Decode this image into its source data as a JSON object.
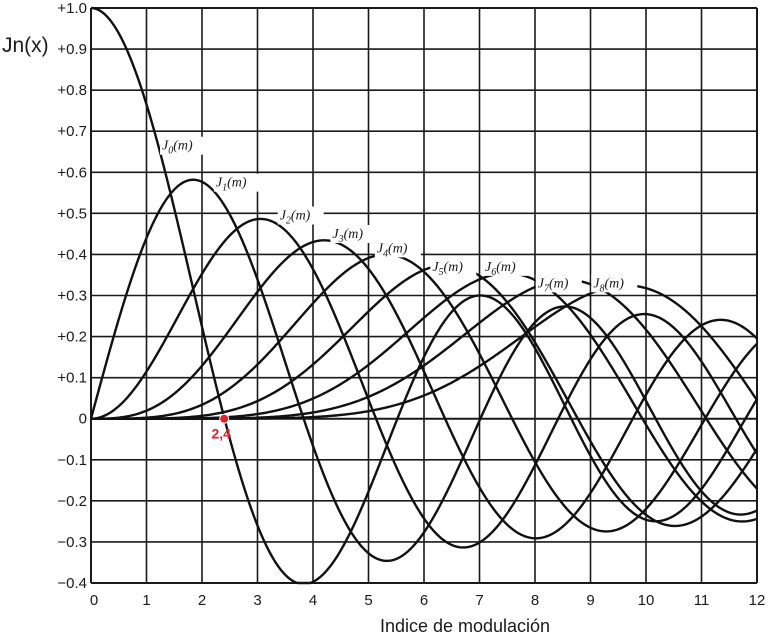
{
  "chart_data": {
    "type": "line",
    "title": "",
    "ylabel": "Jn(x)",
    "xlabel": "Indice de modulación",
    "xlim": [
      0,
      12
    ],
    "ylim": [
      -0.4,
      1.0
    ],
    "grid": true,
    "legend_position": "inline labels on curves",
    "x_ticks": [
      "0",
      "1",
      "2",
      "3",
      "4",
      "5",
      "6",
      "7",
      "8",
      "9",
      "10",
      "11",
      "12"
    ],
    "y_ticks": [
      "+1.0",
      "+0.9",
      "+0.8",
      "+0.7",
      "+0.6",
      "+0.5",
      "+0.4",
      "+0.3",
      "+0.2",
      "+0.1",
      "0",
      "−0.1",
      "−0.2",
      "−0.3",
      "−0.4"
    ],
    "x": [
      0,
      1,
      2,
      3,
      4,
      5,
      6,
      7,
      8,
      9,
      10,
      11,
      12
    ],
    "series": [
      {
        "name": "J0(m)",
        "order": 0,
        "values": [
          1.0,
          0.77,
          0.22,
          -0.26,
          -0.4,
          -0.18,
          0.15,
          0.3,
          0.17,
          -0.09,
          -0.25,
          -0.17,
          0.05
        ]
      },
      {
        "name": "J1(m)",
        "order": 1,
        "values": [
          0.0,
          0.44,
          0.58,
          0.34,
          -0.07,
          -0.33,
          -0.28,
          0.0,
          0.23,
          0.25,
          0.04,
          -0.18,
          -0.22
        ]
      },
      {
        "name": "J2(m)",
        "order": 2,
        "values": [
          0.0,
          0.11,
          0.35,
          0.49,
          0.36,
          0.05,
          -0.24,
          -0.3,
          -0.11,
          0.14,
          0.25,
          0.14,
          -0.08
        ]
      },
      {
        "name": "J3(m)",
        "order": 3,
        "values": [
          0.0,
          0.02,
          0.13,
          0.31,
          0.43,
          0.36,
          0.11,
          -0.17,
          -0.29,
          -0.18,
          0.06,
          0.23,
          0.2
        ]
      },
      {
        "name": "J4(m)",
        "order": 4,
        "values": [
          0.0,
          0.0,
          0.03,
          0.13,
          0.28,
          0.39,
          0.36,
          0.16,
          -0.11,
          -0.27,
          -0.22,
          -0.02,
          0.18
        ]
      },
      {
        "name": "J5(m)",
        "order": 5,
        "values": [
          0.0,
          0.0,
          0.01,
          0.04,
          0.13,
          0.26,
          0.36,
          0.35,
          0.19,
          -0.06,
          -0.23,
          -0.24,
          -0.07
        ]
      },
      {
        "name": "J6(m)",
        "order": 6,
        "values": [
          0.0,
          0.0,
          0.0,
          0.01,
          0.05,
          0.13,
          0.25,
          0.34,
          0.34,
          0.2,
          -0.01,
          -0.2,
          -0.24
        ]
      },
      {
        "name": "J7(m)",
        "order": 7,
        "values": [
          0.0,
          0.0,
          0.0,
          0.0,
          0.02,
          0.05,
          0.13,
          0.23,
          0.32,
          0.33,
          0.22,
          0.02,
          -0.17
        ]
      },
      {
        "name": "J8(m)",
        "order": 8,
        "values": [
          0.0,
          0.0,
          0.0,
          0.0,
          0.0,
          0.02,
          0.06,
          0.13,
          0.22,
          0.31,
          0.32,
          0.22,
          0.05
        ]
      }
    ],
    "curve_labels": [
      {
        "text_main": "J",
        "sub": "0",
        "tail": "(m)",
        "x": 1.28,
        "y": 0.655
      },
      {
        "text_main": "J",
        "sub": "1",
        "tail": "(m)",
        "x": 2.25,
        "y": 0.565
      },
      {
        "text_main": "J",
        "sub": "2",
        "tail": "(m)",
        "x": 3.4,
        "y": 0.485
      },
      {
        "text_main": "J",
        "sub": "3",
        "tail": "(m)",
        "x": 4.35,
        "y": 0.44
      },
      {
        "text_main": "J",
        "sub": "4",
        "tail": "(m)",
        "x": 5.15,
        "y": 0.405
      },
      {
        "text_main": "J",
        "sub": "5",
        "tail": "(m)",
        "x": 6.15,
        "y": 0.36
      },
      {
        "text_main": "J",
        "sub": "6",
        "tail": "(m)",
        "x": 7.1,
        "y": 0.36
      },
      {
        "text_main": "J",
        "sub": "7",
        "tail": "(m)",
        "x": 8.05,
        "y": 0.32
      },
      {
        "text_main": "J",
        "sub": "8",
        "tail": "(m)",
        "x": 9.05,
        "y": 0.32
      }
    ],
    "annotations": [
      {
        "text": "2,4",
        "x": 2.4,
        "y": 0.0,
        "marker_color": "#e0202a",
        "note": "first zero of J0(m)"
      }
    ]
  },
  "colors": {
    "curve": "#111111",
    "grid": "#1a1a1a",
    "annotation": "#e0202a",
    "background": "#ffffff"
  }
}
